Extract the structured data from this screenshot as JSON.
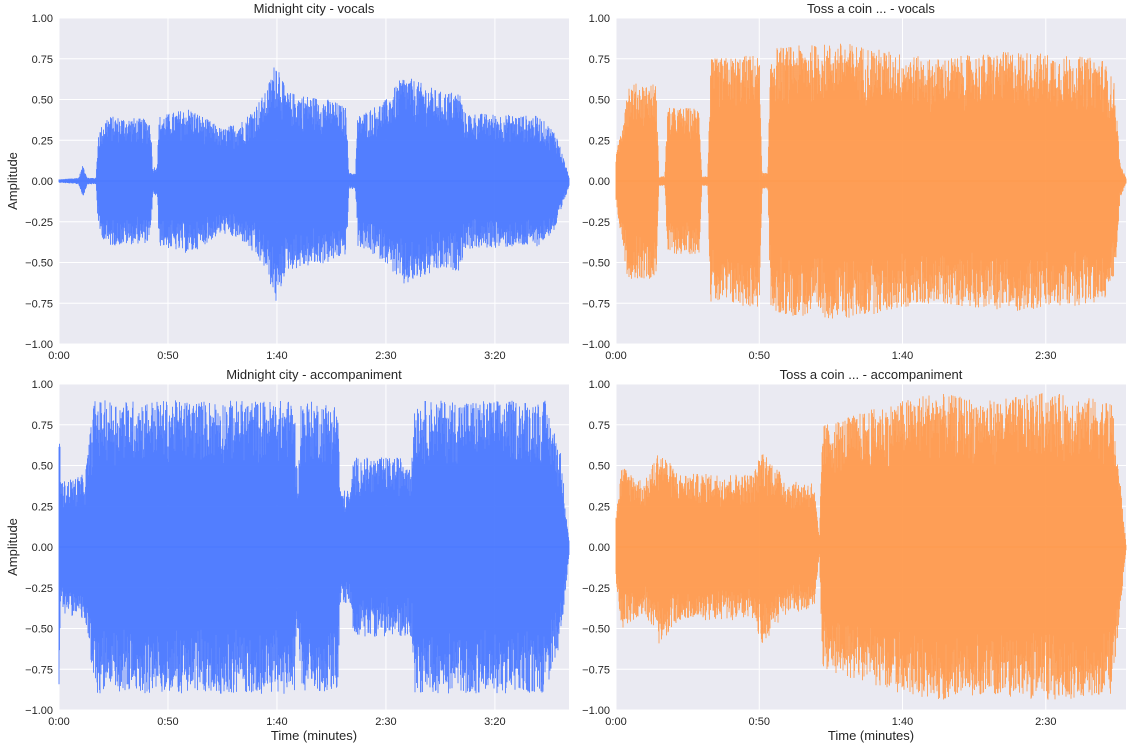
{
  "chart_data": [
    {
      "type": "area",
      "title": "Midnight city - vocals",
      "xlabel": "",
      "ylabel": "Amplitude",
      "xlim": [
        0,
        234
      ],
      "ylim": [
        -1.0,
        1.0
      ],
      "xticks": [
        0,
        50,
        100,
        150,
        200
      ],
      "xtick_labels": [
        "0:00",
        "0:50",
        "1:40",
        "2:30",
        "3:20"
      ],
      "yticks": [
        -1.0,
        -0.75,
        -0.5,
        -0.25,
        0.0,
        0.25,
        0.5,
        0.75,
        1.0
      ],
      "ytick_labels": [
        "−1.00",
        "−0.75",
        "−0.50",
        "−0.25",
        "0.00",
        "0.25",
        "0.50",
        "0.75",
        "1.00"
      ],
      "grid": true,
      "color": "#4a78ff",
      "envelope": [
        [
          0,
          0.01
        ],
        [
          9,
          0.02
        ],
        [
          11,
          0.1
        ],
        [
          13,
          0.02
        ],
        [
          17,
          0.02
        ],
        [
          18,
          0.3
        ],
        [
          22,
          0.4
        ],
        [
          42,
          0.38
        ],
        [
          43,
          0.08
        ],
        [
          45,
          0.1
        ],
        [
          46,
          0.4
        ],
        [
          60,
          0.45
        ],
        [
          75,
          0.32
        ],
        [
          85,
          0.38
        ],
        [
          95,
          0.55
        ],
        [
          100,
          0.77
        ],
        [
          104,
          0.55
        ],
        [
          125,
          0.5
        ],
        [
          132,
          0.45
        ],
        [
          133,
          0.05
        ],
        [
          136,
          0.05
        ],
        [
          137,
          0.4
        ],
        [
          150,
          0.5
        ],
        [
          158,
          0.65
        ],
        [
          175,
          0.55
        ],
        [
          184,
          0.55
        ],
        [
          186,
          0.42
        ],
        [
          220,
          0.4
        ],
        [
          228,
          0.3
        ],
        [
          232,
          0.12
        ],
        [
          234,
          0.03
        ]
      ]
    },
    {
      "type": "area",
      "title": "Toss a coin ... - vocals",
      "xlabel": "",
      "ylabel": "",
      "xlim": [
        0,
        178
      ],
      "ylim": [
        -1.0,
        1.0
      ],
      "xticks": [
        0,
        50,
        100,
        150
      ],
      "xtick_labels": [
        "0:00",
        "0:50",
        "1:40",
        "2:30"
      ],
      "yticks": [
        -1.0,
        -0.75,
        -0.5,
        -0.25,
        0.0,
        0.25,
        0.5,
        0.75,
        1.0
      ],
      "ytick_labels": [
        "−1.00",
        "−0.75",
        "−0.50",
        "−0.25",
        "0.00",
        "0.25",
        "0.50",
        "0.75",
        "1.00"
      ],
      "grid": true,
      "color": "#ff9a4d",
      "envelope": [
        [
          0,
          0.15
        ],
        [
          2,
          0.35
        ],
        [
          4,
          0.6
        ],
        [
          14,
          0.6
        ],
        [
          15,
          0.03
        ],
        [
          17,
          0.03
        ],
        [
          18,
          0.45
        ],
        [
          29,
          0.45
        ],
        [
          30,
          0.03
        ],
        [
          32,
          0.03
        ],
        [
          33,
          0.75
        ],
        [
          50,
          0.78
        ],
        [
          51,
          0.05
        ],
        [
          53,
          0.05
        ],
        [
          54,
          0.82
        ],
        [
          80,
          0.85
        ],
        [
          110,
          0.75
        ],
        [
          140,
          0.8
        ],
        [
          170,
          0.75
        ],
        [
          174,
          0.6
        ],
        [
          176,
          0.1
        ],
        [
          178,
          0.02
        ]
      ]
    },
    {
      "type": "area",
      "title": "Midnight city - accompaniment",
      "xlabel": "Time (minutes)",
      "ylabel": "Amplitude",
      "xlim": [
        0,
        234
      ],
      "ylim": [
        -1.0,
        1.0
      ],
      "xticks": [
        0,
        50,
        100,
        150,
        200
      ],
      "xtick_labels": [
        "0:00",
        "0:50",
        "1:40",
        "2:30",
        "3:20"
      ],
      "yticks": [
        -1.0,
        -0.75,
        -0.5,
        -0.25,
        0.0,
        0.25,
        0.5,
        0.75,
        1.0
      ],
      "ytick_labels": [
        "−1.00",
        "−0.75",
        "−0.50",
        "−0.25",
        "0.00",
        "0.25",
        "0.50",
        "0.75",
        "1.00"
      ],
      "grid": true,
      "color": "#4a78ff",
      "envelope": [
        [
          0,
          0.85
        ],
        [
          1,
          0.4
        ],
        [
          12,
          0.45
        ],
        [
          16,
          0.9
        ],
        [
          108,
          0.9
        ],
        [
          109,
          0.5
        ],
        [
          110,
          0.5
        ],
        [
          111,
          0.9
        ],
        [
          128,
          0.88
        ],
        [
          129,
          0.35
        ],
        [
          134,
          0.35
        ],
        [
          135,
          0.55
        ],
        [
          162,
          0.55
        ],
        [
          163,
          0.9
        ],
        [
          223,
          0.9
        ],
        [
          230,
          0.6
        ],
        [
          234,
          0.05
        ]
      ]
    },
    {
      "type": "area",
      "title": "Toss a coin ... - accompaniment",
      "xlabel": "Time (minutes)",
      "ylabel": "",
      "xlim": [
        0,
        178
      ],
      "ylim": [
        -1.0,
        1.0
      ],
      "xticks": [
        0,
        50,
        100,
        150
      ],
      "xtick_labels": [
        "0:00",
        "0:50",
        "1:40",
        "2:30"
      ],
      "yticks": [
        -1.0,
        -0.75,
        -0.5,
        -0.25,
        0.0,
        0.25,
        0.5,
        0.75,
        1.0
      ],
      "ytick_labels": [
        "−1.00",
        "−0.75",
        "−0.50",
        "−0.25",
        "0.00",
        "0.25",
        "0.50",
        "0.75",
        "1.00"
      ],
      "grid": true,
      "color": "#ff9a4d",
      "envelope": [
        [
          0,
          0.2
        ],
        [
          2,
          0.5
        ],
        [
          10,
          0.4
        ],
        [
          15,
          0.6
        ],
        [
          22,
          0.45
        ],
        [
          48,
          0.45
        ],
        [
          51,
          0.6
        ],
        [
          60,
          0.4
        ],
        [
          69,
          0.4
        ],
        [
          71,
          0.05
        ],
        [
          72,
          0.75
        ],
        [
          90,
          0.85
        ],
        [
          110,
          0.95
        ],
        [
          130,
          0.9
        ],
        [
          150,
          0.95
        ],
        [
          173,
          0.9
        ],
        [
          176,
          0.4
        ],
        [
          178,
          0.02
        ]
      ]
    }
  ]
}
